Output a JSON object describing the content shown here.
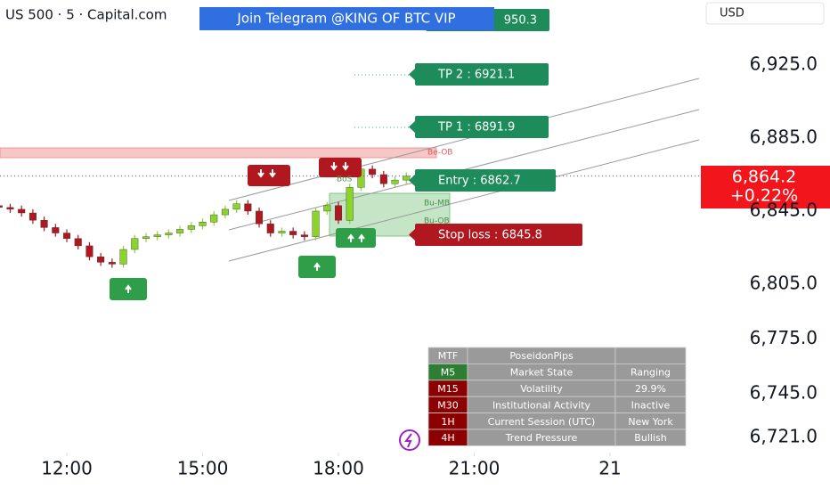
{
  "chart_data": {
    "type": "candlestick",
    "title": "US 500 · 5 · Capital.com",
    "banner": "Join Telegram @KING OF BTC VIP",
    "currency": "USD",
    "last_price_label": "6,864.2",
    "change_label": "+0.22%",
    "up_color": "#8bd42a",
    "down_color": "#b0171f",
    "x": [
      10.5,
      10.75,
      11,
      11.25,
      11.5,
      11.75,
      12,
      12.25,
      12.5,
      12.75,
      13,
      13.25,
      13.5,
      13.75,
      14,
      14.25,
      14.5,
      14.75,
      15,
      15.25,
      15.5,
      15.75,
      16,
      16.25,
      16.5,
      16.75,
      17,
      17.25,
      17.5,
      17.75,
      18,
      18.25,
      18.5,
      18.75,
      19,
      19.25,
      19.5
    ],
    "series": [
      {
        "name": "US 500",
        "open": [
          6848,
          6847,
          6846,
          6844,
          6840,
          6836,
          6833,
          6830,
          6826,
          6820,
          6817,
          6816,
          6824,
          6830,
          6831,
          6832,
          6833,
          6835,
          6837,
          6839,
          6843,
          6846,
          6849,
          6845,
          6838,
          6833,
          6834,
          6832,
          6831,
          6845,
          6848,
          6840,
          6858,
          6868,
          6865,
          6860,
          6862
        ],
        "high": [
          6850,
          6849,
          6848,
          6846,
          6842,
          6838,
          6835,
          6832,
          6828,
          6822,
          6819,
          6826,
          6832,
          6833,
          6834,
          6835,
          6837,
          6839,
          6841,
          6845,
          6848,
          6851,
          6851,
          6847,
          6840,
          6836,
          6836,
          6834,
          6847,
          6850,
          6850,
          6860,
          6870,
          6870,
          6867,
          6864,
          6866.2
        ],
        "low": [
          6845,
          6844,
          6842,
          6838,
          6834,
          6831,
          6828,
          6824,
          6818,
          6815,
          6814,
          6814,
          6822,
          6828,
          6829,
          6830,
          6831,
          6833,
          6835,
          6837,
          6841,
          6844,
          6843,
          6836,
          6831,
          6831,
          6830,
          6829,
          6829,
          6843,
          6838,
          6838,
          6856,
          6863,
          6858,
          6858,
          6860
        ],
        "close": [
          6847,
          6846,
          6844,
          6840,
          6836,
          6833,
          6830,
          6826,
          6820,
          6817,
          6816,
          6824,
          6830,
          6831,
          6832,
          6833,
          6835,
          6837,
          6839,
          6843,
          6846,
          6849,
          6845,
          6838,
          6833,
          6834,
          6832,
          6831,
          6845,
          6848,
          6840,
          6858,
          6868,
          6865,
          6860,
          6862,
          6864.2
        ]
      }
    ],
    "xlim": [
      10.524,
      25.968
    ],
    "xticks": [
      {
        "value": 12,
        "label": "12:00"
      },
      {
        "value": 15,
        "label": "15:00"
      },
      {
        "value": 18,
        "label": "18:00"
      },
      {
        "value": 21,
        "label": "21:00"
      },
      {
        "value": 24,
        "label": "21"
      }
    ],
    "ylim": [
      6711.8,
      6960.6
    ],
    "yticks": [
      {
        "value": 6925,
        "label": "6,925.0"
      },
      {
        "value": 6885,
        "label": "6,885.0"
      },
      {
        "value": 6845,
        "label": "6,845.0"
      },
      {
        "value": 6805,
        "label": "6,805.0"
      },
      {
        "value": 6775,
        "label": "6,775.0"
      },
      {
        "value": 6745,
        "label": "6,745.0"
      },
      {
        "value": 6721,
        "label": "6,721.0"
      }
    ],
    "annotations": [
      "950.3",
      "TP 2 : 6921.1",
      "TP 1 : 6891.9",
      "Entry : 6862.7",
      "Stop loss : 6845.8"
    ],
    "zones": [
      "Be-OB",
      "Bu-MB",
      "Bu-OB",
      "BoS"
    ],
    "info_table": {
      "rows": [
        [
          "MTF",
          "PoseidonPips"
        ],
        [
          "M5",
          "Market State",
          "Ranging"
        ],
        [
          "M15",
          "Volatility",
          "29.9%"
        ],
        [
          "M30",
          "Institutional Activity",
          "Inactive"
        ],
        [
          "1H",
          "Current Session (UTC)",
          "New York"
        ],
        [
          "4H",
          "Trend Pressure",
          "Bullish"
        ]
      ]
    }
  }
}
